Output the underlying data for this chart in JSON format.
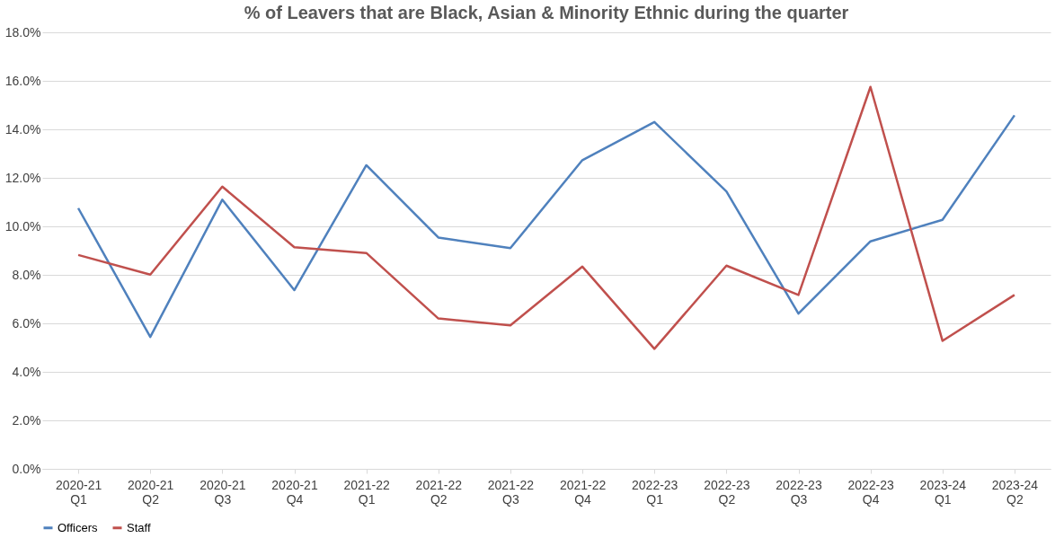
{
  "chart_data": {
    "type": "line",
    "title": "% of Leavers that are Black, Asian & Minority Ethnic during the quarter",
    "categories": [
      "2020-21 Q1",
      "2020-21 Q2",
      "2020-21 Q3",
      "2020-21 Q4",
      "2021-22 Q1",
      "2021-22 Q2",
      "2021-22 Q3",
      "2021-22 Q4",
      "2022-23 Q1",
      "2022-23 Q2",
      "2022-23 Q3",
      "2022-23 Q4",
      "2023-24 Q1",
      "2023-24 Q2"
    ],
    "series": [
      {
        "name": "Officers",
        "color": "#4f81bd",
        "values": [
          10.75,
          5.44,
          11.1,
          7.37,
          12.52,
          9.54,
          9.1,
          12.73,
          14.3,
          11.44,
          6.4,
          9.38,
          10.27,
          14.58
        ]
      },
      {
        "name": "Staff",
        "color": "#c0504d",
        "values": [
          8.82,
          8.01,
          11.64,
          9.14,
          8.9,
          6.2,
          5.92,
          8.34,
          4.95,
          8.38,
          7.17,
          15.75,
          5.28,
          7.17
        ]
      }
    ],
    "ylim": [
      0,
      18
    ],
    "yticks": [
      {
        "value": 0,
        "label": "0.0%"
      },
      {
        "value": 2,
        "label": "2.0%"
      },
      {
        "value": 4,
        "label": "4.0%"
      },
      {
        "value": 6,
        "label": "6.0%"
      },
      {
        "value": 8,
        "label": "8.0%"
      },
      {
        "value": 10,
        "label": "10.0%"
      },
      {
        "value": 12,
        "label": "12.0%"
      },
      {
        "value": 14,
        "label": "14.0%"
      },
      {
        "value": 16,
        "label": "16.0%"
      },
      {
        "value": 18,
        "label": "18.0%"
      }
    ],
    "grid": "y",
    "legend": "bottom",
    "marker": "none",
    "line_style": "solid"
  }
}
